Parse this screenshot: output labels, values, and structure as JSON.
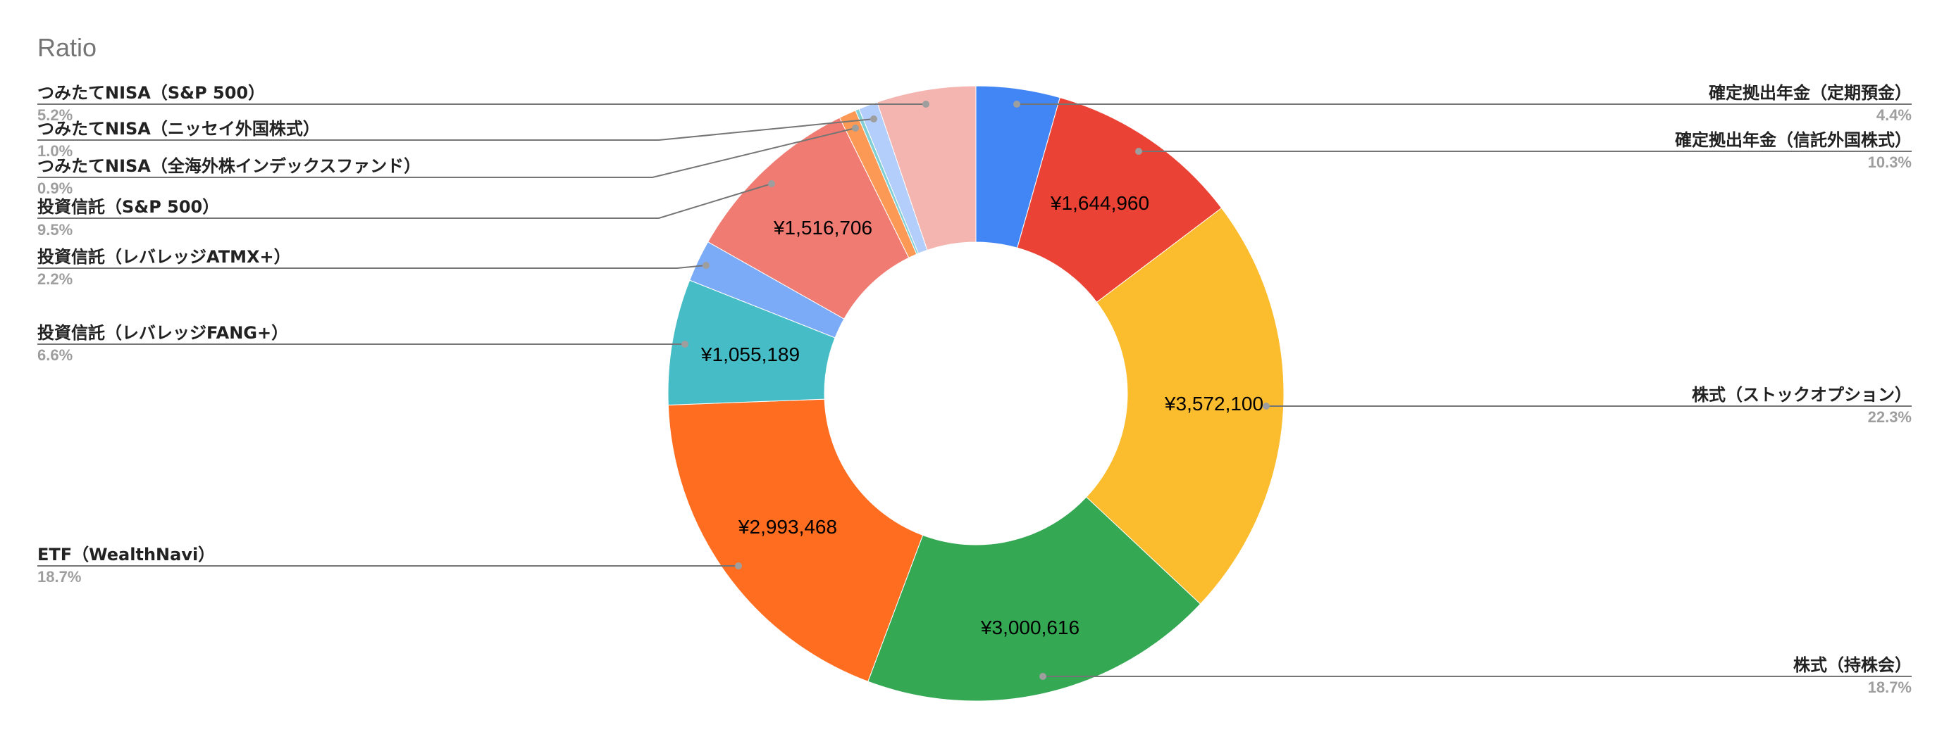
{
  "chart_data": {
    "type": "pie",
    "donut": true,
    "title": "Ratio",
    "slices": [
      {
        "label": "確定拠出年金（定期預金）",
        "percent": 4.4,
        "percent_label": "4.4%",
        "value_label": "",
        "color": "#4285f4"
      },
      {
        "label": "確定拠出年金（信託外国株式）",
        "percent": 10.3,
        "percent_label": "10.3%",
        "value_label": "¥1,644,960",
        "color": "#ea4335"
      },
      {
        "label": "株式（ストックオプション）",
        "percent": 22.3,
        "percent_label": "22.3%",
        "value_label": "¥3,572,100",
        "color": "#fbbc2e"
      },
      {
        "label": "株式（持株会）",
        "percent": 18.7,
        "percent_label": "18.7%",
        "value_label": "¥3,000,616",
        "color": "#34a853"
      },
      {
        "label": "ETF（WealthNavi）",
        "percent": 18.7,
        "percent_label": "18.7%",
        "value_label": "¥2,993,468",
        "color": "#ff6d21"
      },
      {
        "label": "投資信託（レバレッジFANG+）",
        "percent": 6.6,
        "percent_label": "6.6%",
        "value_label": "¥1,055,189",
        "color": "#46bdc6"
      },
      {
        "label": "投資信託（レバレッジATMX+）",
        "percent": 2.2,
        "percent_label": "2.2%",
        "value_label": "",
        "color": "#7baaf7"
      },
      {
        "label": "投資信託（S&P 500）",
        "percent": 9.5,
        "percent_label": "9.5%",
        "value_label": "¥1,516,706",
        "color": "#f07b72"
      },
      {
        "label": "つみたてNISA（全海外株インデックスファンド）",
        "percent": 0.9,
        "percent_label": "0.9%",
        "value_label": "",
        "color": "#fc9a55"
      },
      {
        "label": "",
        "percent": 0.2,
        "percent_label": "",
        "value_label": "",
        "color": "#7fcfd4"
      },
      {
        "label": "つみたてNISA（ニッセイ外国株式）",
        "percent": 1.0,
        "percent_label": "1.0%",
        "value_label": "",
        "color": "#b3cefb"
      },
      {
        "label": "つみたてNISA（S&P 500）",
        "percent": 5.2,
        "percent_label": "5.2%",
        "value_label": "",
        "color": "#f4b4b0"
      }
    ],
    "legend": "none (callout labels)"
  }
}
